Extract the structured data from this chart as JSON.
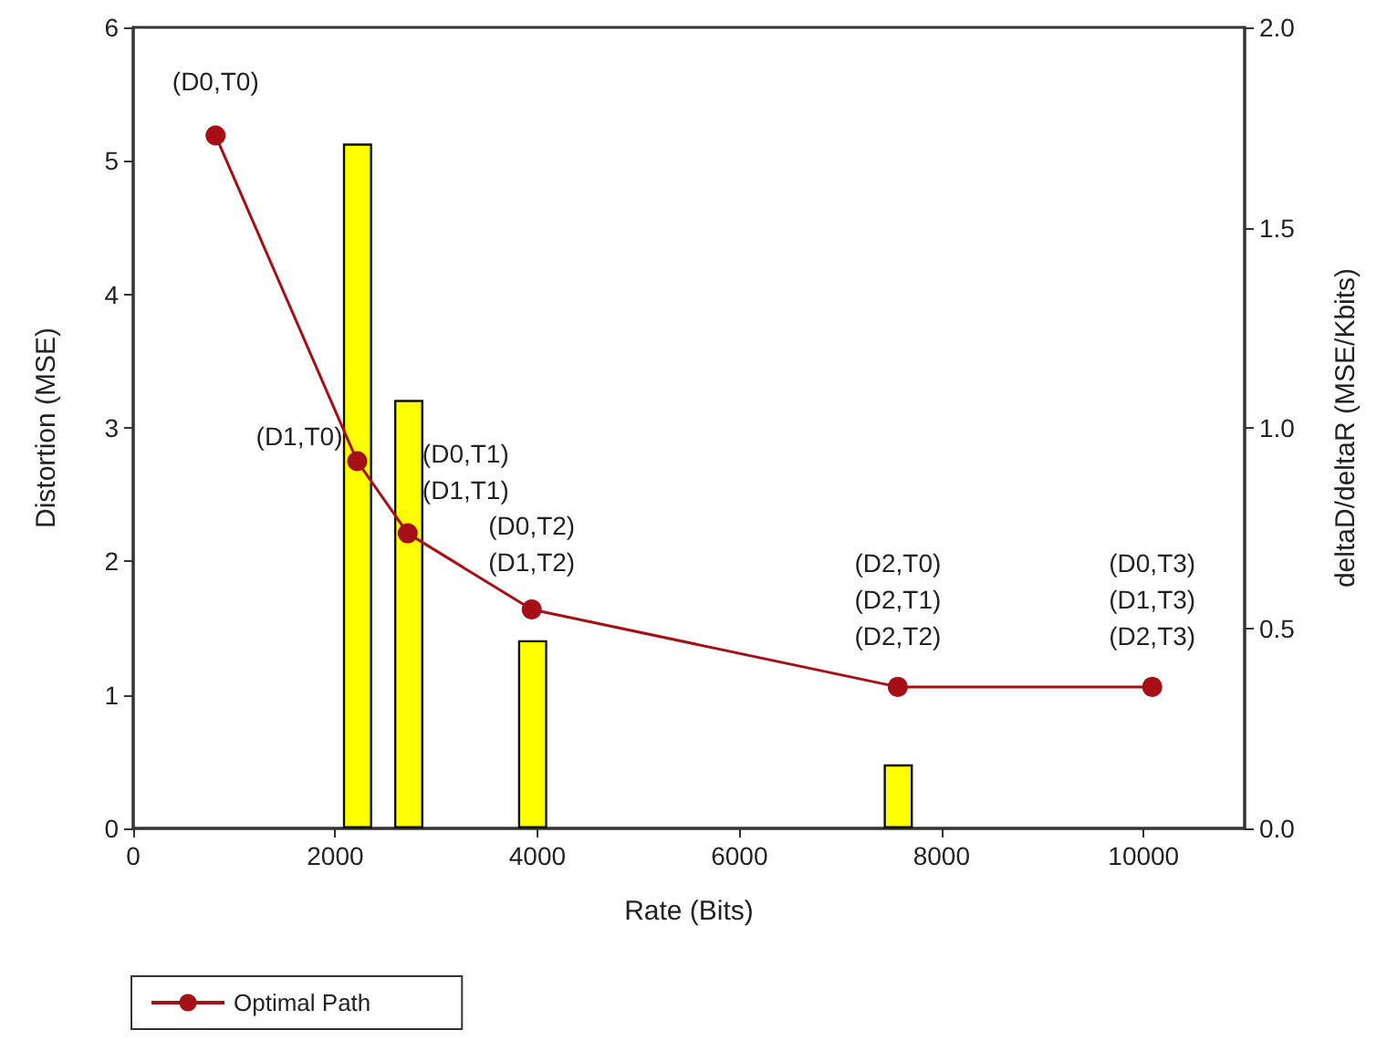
{
  "chart_data": {
    "type": "line",
    "xlabel": "Rate (Bits)",
    "ylabel": "Distortion (MSE)",
    "y2label": "deltaD/deltaR (MSE/Kbits)",
    "xlim": [
      0,
      11000
    ],
    "xticks": [
      0,
      2000,
      4000,
      6000,
      8000,
      10000
    ],
    "ylim": [
      0,
      6
    ],
    "yticks": [
      0,
      1,
      2,
      3,
      4,
      5,
      6
    ],
    "y2lim": [
      0,
      2
    ],
    "y2ticks": [
      {
        "value": 0,
        "label": "0.0"
      },
      {
        "value": 0.5,
        "label": "0.5"
      },
      {
        "value": 1,
        "label": "1.0"
      },
      {
        "value": 1.5,
        "label": "1.5"
      },
      {
        "value": 2,
        "label": "2.0"
      }
    ],
    "series": [
      {
        "type": "bar",
        "axis": "y2",
        "color": "#ffff00",
        "x": [
          2220,
          2727,
          3953,
          7572
        ],
        "values": [
          1.71,
          1.07,
          0.47,
          0.16
        ]
      },
      {
        "name": "Optimal Path",
        "color": "#a50f15",
        "marker": "circle",
        "x": [
          815,
          2217,
          2717,
          3944,
          7567,
          10085
        ],
        "values": [
          5.19,
          2.75,
          2.21,
          1.64,
          1.06,
          1.06
        ]
      }
    ],
    "annotations": [
      {
        "text": "(D0,T0)",
        "x": 815,
        "y": 5.19
      },
      {
        "text": "(D1,T0)",
        "x": 2217,
        "y": 2.75
      },
      {
        "text": "(D0,T1)\n(D1,T1)",
        "x": 2717,
        "y": 2.21
      },
      {
        "text": "(D0,T2)\n(D1,T2)",
        "x": 3944,
        "y": 1.64
      },
      {
        "text": "(D2,T0)\n(D2,T1)\n(D2,T2)",
        "x": 7567,
        "y": 1.06
      },
      {
        "text": "(D0,T3)\n(D1,T3)\n(D2,T3)",
        "x": 10085,
        "y": 1.06
      }
    ],
    "legend": "bottom left",
    "grid": false
  }
}
